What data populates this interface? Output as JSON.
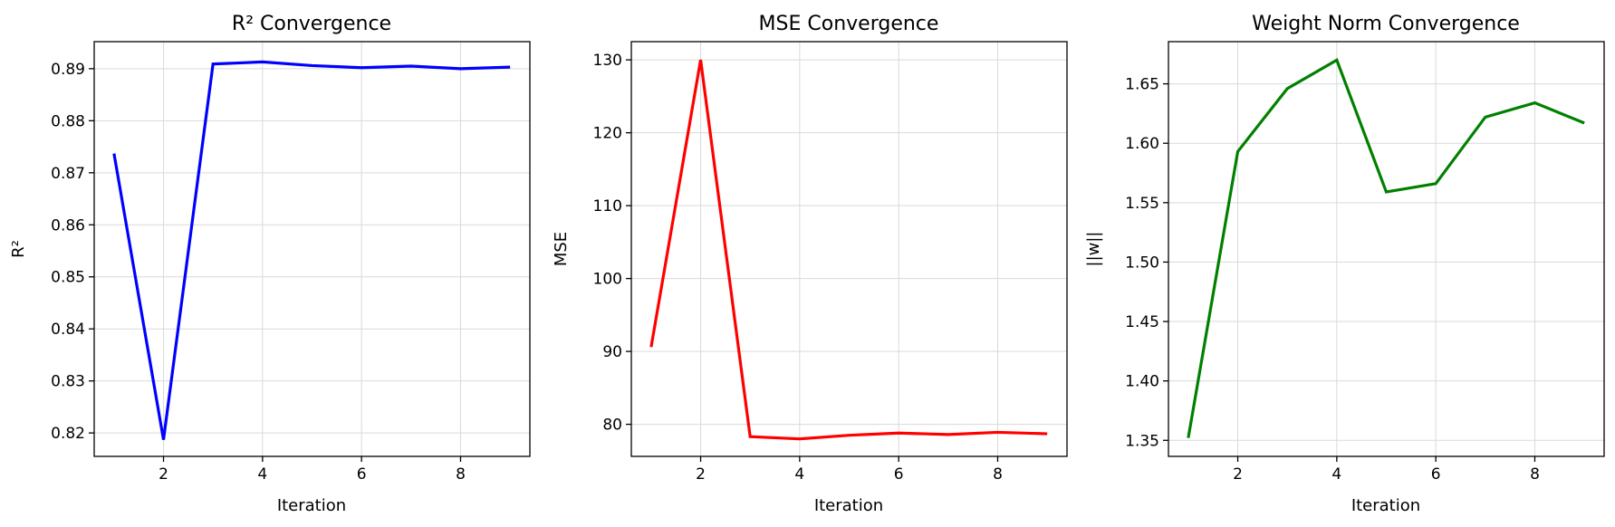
{
  "chart_data": [
    {
      "type": "line",
      "title": "R² Convergence",
      "xlabel": "Iteration",
      "ylabel": "R²",
      "xlim": [
        0.6,
        9.4
      ],
      "ylim": [
        0.8155,
        0.8952
      ],
      "xticks": [
        2,
        4,
        6,
        8
      ],
      "yticks": [
        0.82,
        0.83,
        0.84,
        0.85,
        0.86,
        0.87,
        0.88,
        0.89
      ],
      "ytick_labels": [
        "0.82",
        "0.83",
        "0.84",
        "0.85",
        "0.86",
        "0.87",
        "0.88",
        "0.89"
      ],
      "grid": true,
      "color": "#0000ff",
      "series": [
        {
          "x": [
            1,
            2,
            3,
            4,
            5,
            6,
            7,
            8,
            9
          ],
          "values": [
            0.8737,
            0.8187,
            0.8909,
            0.8913,
            0.8906,
            0.8902,
            0.8905,
            0.89,
            0.8903
          ]
        }
      ]
    },
    {
      "type": "line",
      "title": "MSE Convergence",
      "xlabel": "Iteration",
      "ylabel": "MSE",
      "xlim": [
        0.6,
        9.4
      ],
      "ylim": [
        75.6,
        132.5
      ],
      "xticks": [
        2,
        4,
        6,
        8
      ],
      "yticks": [
        80,
        90,
        100,
        110,
        120,
        130
      ],
      "ytick_labels": [
        "80",
        "90",
        "100",
        "110",
        "120",
        "130"
      ],
      "grid": true,
      "color": "#ff0000",
      "series": [
        {
          "x": [
            1,
            2,
            3,
            4,
            5,
            6,
            7,
            8,
            9
          ],
          "values": [
            90.6,
            130.0,
            78.3,
            78.0,
            78.5,
            78.8,
            78.6,
            78.9,
            78.7
          ]
        }
      ]
    },
    {
      "type": "line",
      "title": "Weight Norm Convergence",
      "xlabel": "Iteration",
      "ylabel": "||w||",
      "xlim": [
        0.6,
        9.4
      ],
      "ylim": [
        1.3365,
        1.6855
      ],
      "xticks": [
        2,
        4,
        6,
        8
      ],
      "yticks": [
        1.35,
        1.4,
        1.45,
        1.5,
        1.55,
        1.6,
        1.65
      ],
      "ytick_labels": [
        "1.35",
        "1.40",
        "1.45",
        "1.50",
        "1.55",
        "1.60",
        "1.65"
      ],
      "grid": true,
      "color": "#008000",
      "series": [
        {
          "x": [
            1,
            2,
            3,
            4,
            5,
            6,
            7,
            8,
            9
          ],
          "values": [
            1.352,
            1.593,
            1.646,
            1.67,
            1.559,
            1.566,
            1.622,
            1.634,
            1.617
          ]
        }
      ]
    }
  ]
}
